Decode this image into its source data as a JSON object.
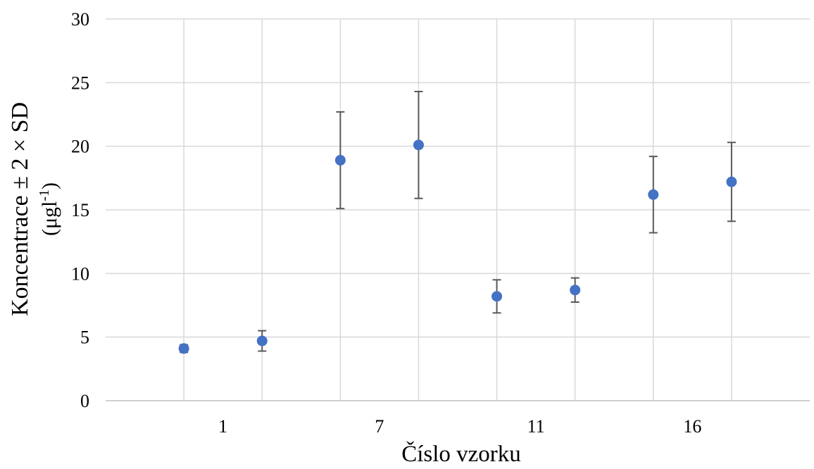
{
  "chart_data": {
    "type": "scatter",
    "title": "",
    "xlabel": "Číslo vzorku",
    "ylabel": {
      "line1": "Koncentrace ± 2 × SD",
      "line2_open": "(μgl",
      "line2_sup": "-1",
      "line2_close": ")"
    },
    "ylim": [
      0,
      30
    ],
    "yticks": [
      0,
      5,
      10,
      15,
      20,
      25,
      30
    ],
    "x_slots": 8,
    "x_ticks": [
      {
        "label": "1",
        "between": [
          0,
          1
        ]
      },
      {
        "label": "7",
        "between": [
          2,
          3
        ]
      },
      {
        "label": "11",
        "between": [
          4,
          5
        ]
      },
      {
        "label": "16",
        "between": [
          6,
          7
        ]
      }
    ],
    "grid": true,
    "legend": "none",
    "marker_color": "#4472c4",
    "error_color": "#595959",
    "grid_color": "#d9d9d9",
    "axis_color": "#bfbfbf",
    "points": [
      {
        "y": 4.1,
        "err": 0.3
      },
      {
        "y": 4.7,
        "err": 0.8
      },
      {
        "y": 18.9,
        "err": 3.8
      },
      {
        "y": 20.1,
        "err": 4.2
      },
      {
        "y": 8.2,
        "err": 1.3
      },
      {
        "y": 8.7,
        "err": 0.95
      },
      {
        "y": 16.2,
        "err": 3.0
      },
      {
        "y": 17.2,
        "err": 3.1
      }
    ]
  }
}
